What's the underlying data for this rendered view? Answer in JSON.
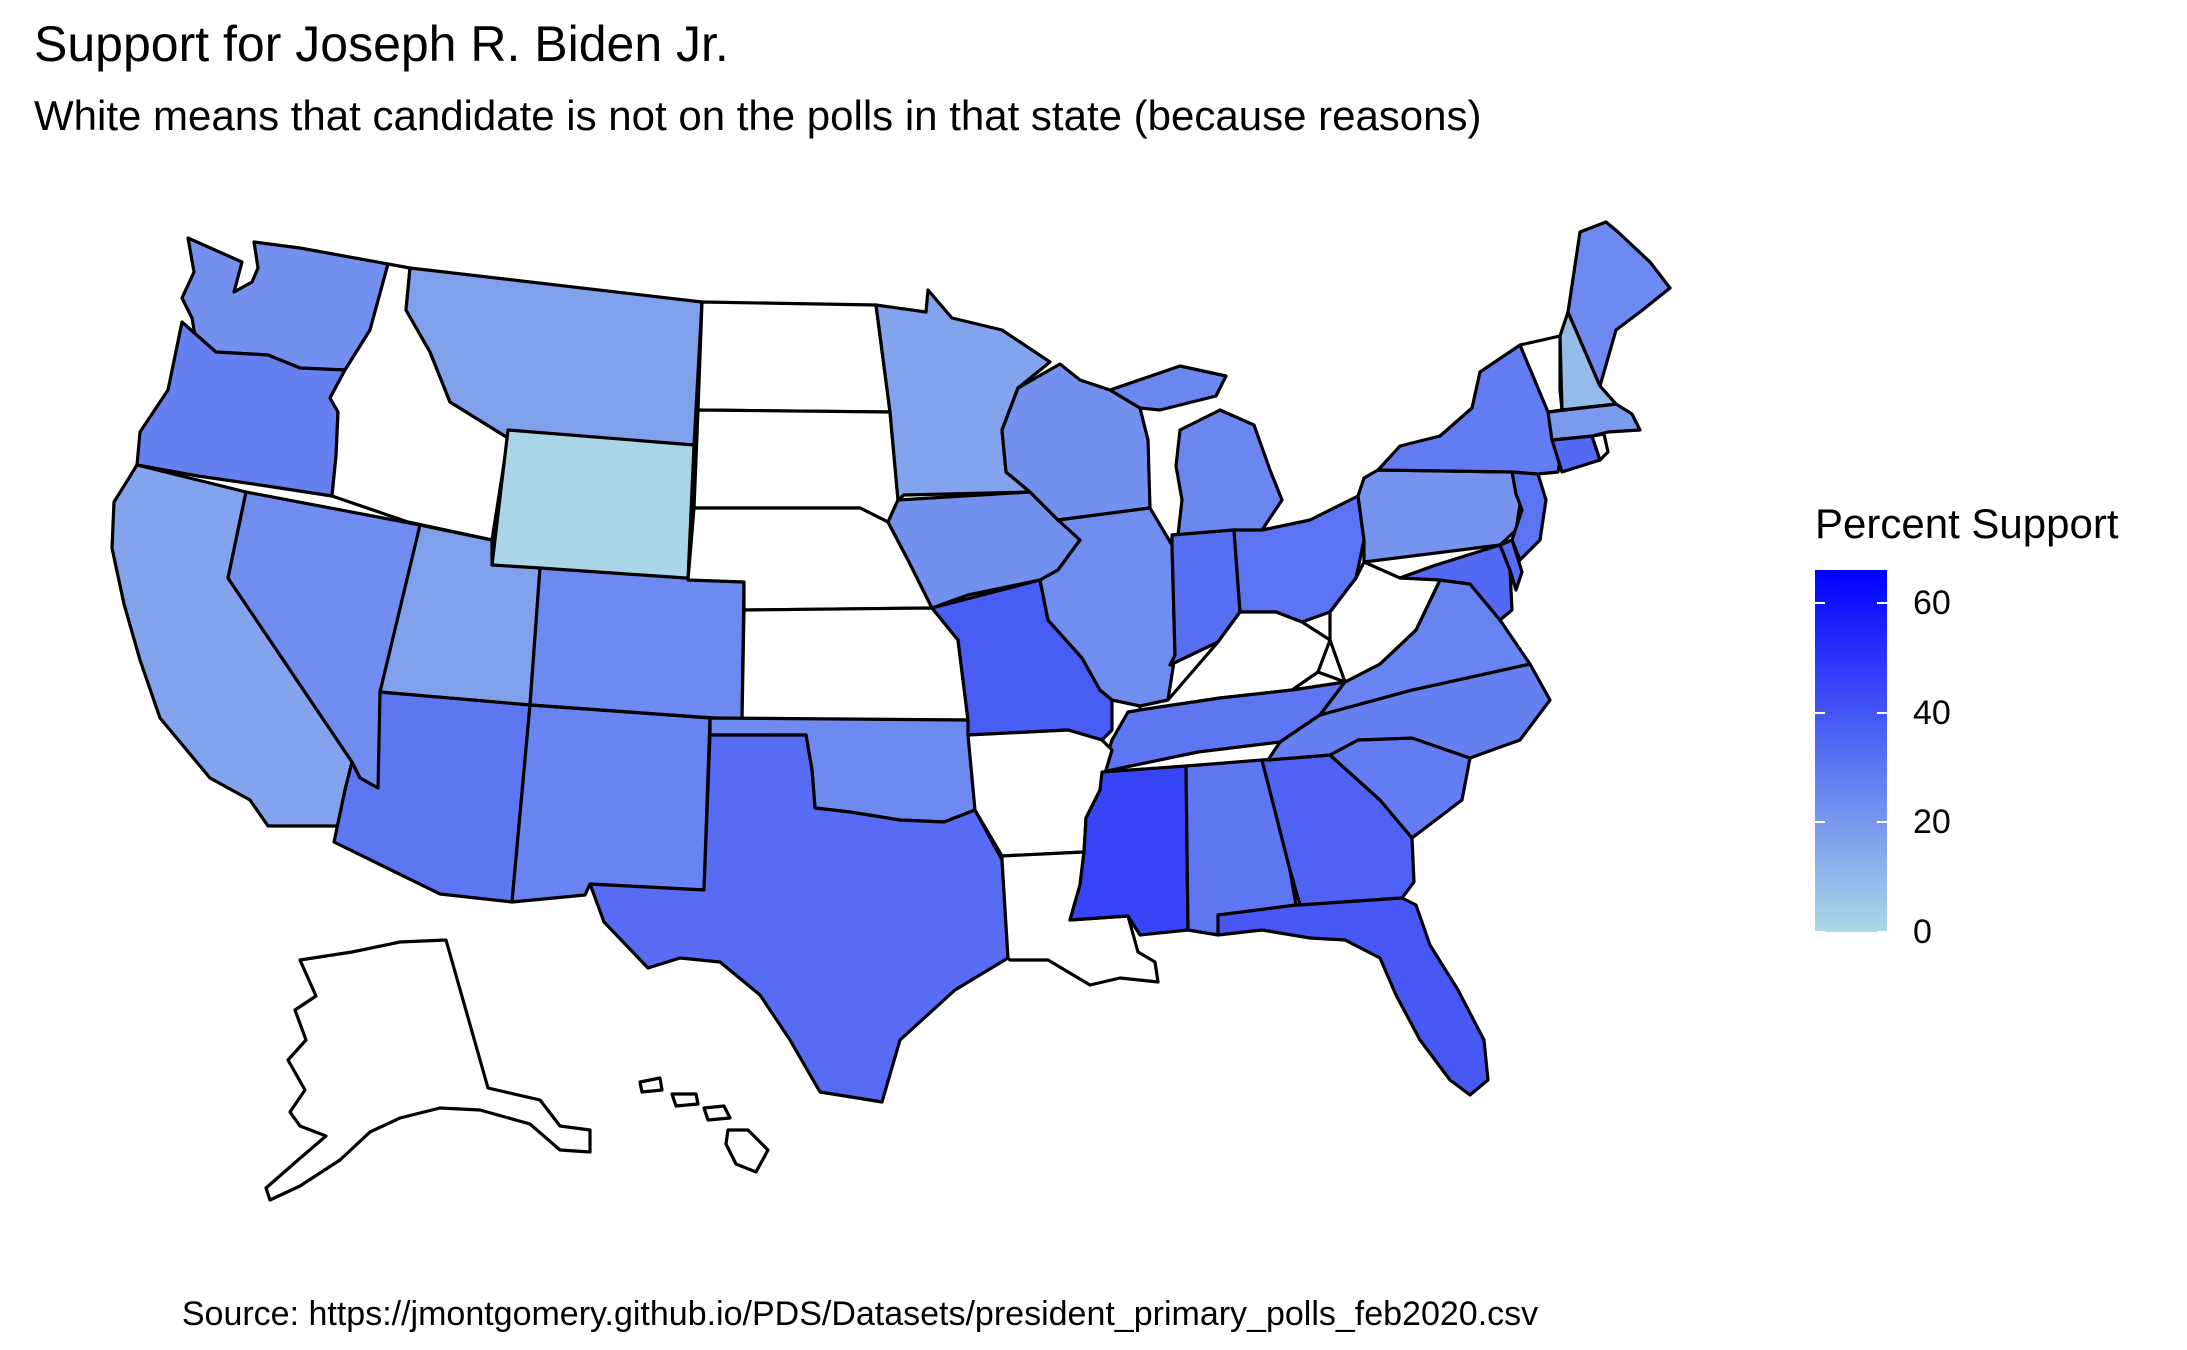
{
  "title": "Support for Joseph R. Biden Jr.",
  "subtitle": "White means that candidate is not on the polls in that state (because reasons)",
  "caption": "Source: https://jmontgomery.github.io/PDS/Datasets/president_primary_polls_feb2020.csv",
  "legend": {
    "title": "Percent Support",
    "low_color": "#add8e6",
    "high_color": "#0000ff",
    "range": [
      0,
      66
    ],
    "ticks": [
      "0",
      "20",
      "40",
      "60"
    ]
  },
  "colors": {
    "missing": "#ffffff",
    "outline": "#000000"
  },
  "chart_data": {
    "type": "choropleth",
    "variable": "Percent Support",
    "scale": {
      "min": 0,
      "max": 66,
      "low_color": "#add8e6",
      "high_color": "#0000ff"
    },
    "missing_color": "#ffffff",
    "states": [
      {
        "name": "Washington",
        "value": 22
      },
      {
        "name": "Oregon",
        "value": 27
      },
      {
        "name": "California",
        "value": 16
      },
      {
        "name": "Idaho",
        "value": null
      },
      {
        "name": "Nevada",
        "value": 23
      },
      {
        "name": "Montana",
        "value": 17
      },
      {
        "name": "Wyoming",
        "value": 1
      },
      {
        "name": "Utah",
        "value": 17
      },
      {
        "name": "Arizona",
        "value": 30
      },
      {
        "name": "Colorado",
        "value": 24
      },
      {
        "name": "New Mexico",
        "value": 26
      },
      {
        "name": "North Dakota",
        "value": null
      },
      {
        "name": "South Dakota",
        "value": null
      },
      {
        "name": "Nebraska",
        "value": null
      },
      {
        "name": "Kansas",
        "value": null
      },
      {
        "name": "Oklahoma",
        "value": 24
      },
      {
        "name": "Texas",
        "value": 33
      },
      {
        "name": "Minnesota",
        "value": 16
      },
      {
        "name": "Iowa",
        "value": 22
      },
      {
        "name": "Missouri",
        "value": 38
      },
      {
        "name": "Arkansas",
        "value": null
      },
      {
        "name": "Louisiana",
        "value": null
      },
      {
        "name": "Wisconsin",
        "value": 22
      },
      {
        "name": "Illinois",
        "value": 23
      },
      {
        "name": "Michigan",
        "value": 25
      },
      {
        "name": "Indiana",
        "value": 32
      },
      {
        "name": "Ohio",
        "value": 31
      },
      {
        "name": "Kentucky",
        "value": null
      },
      {
        "name": "Tennessee",
        "value": 30
      },
      {
        "name": "Mississippi",
        "value": 45
      },
      {
        "name": "Alabama",
        "value": 30
      },
      {
        "name": "Georgia",
        "value": 36
      },
      {
        "name": "Florida",
        "value": 39
      },
      {
        "name": "South Carolina",
        "value": 28
      },
      {
        "name": "North Carolina",
        "value": 27
      },
      {
        "name": "Virginia",
        "value": 26
      },
      {
        "name": "West Virginia",
        "value": null
      },
      {
        "name": "Pennsylvania",
        "value": 21
      },
      {
        "name": "New York",
        "value": 28
      },
      {
        "name": "New Jersey",
        "value": 31
      },
      {
        "name": "Delaware",
        "value": 33
      },
      {
        "name": "Maryland",
        "value": 34
      },
      {
        "name": "Connecticut",
        "value": 34
      },
      {
        "name": "Rhode Island",
        "value": null
      },
      {
        "name": "Massachusetts",
        "value": 19
      },
      {
        "name": "Vermont",
        "value": null
      },
      {
        "name": "New Hampshire",
        "value": 9
      },
      {
        "name": "Maine",
        "value": 24
      },
      {
        "name": "Alaska",
        "value": null
      },
      {
        "name": "Hawaii",
        "value": null
      }
    ]
  }
}
